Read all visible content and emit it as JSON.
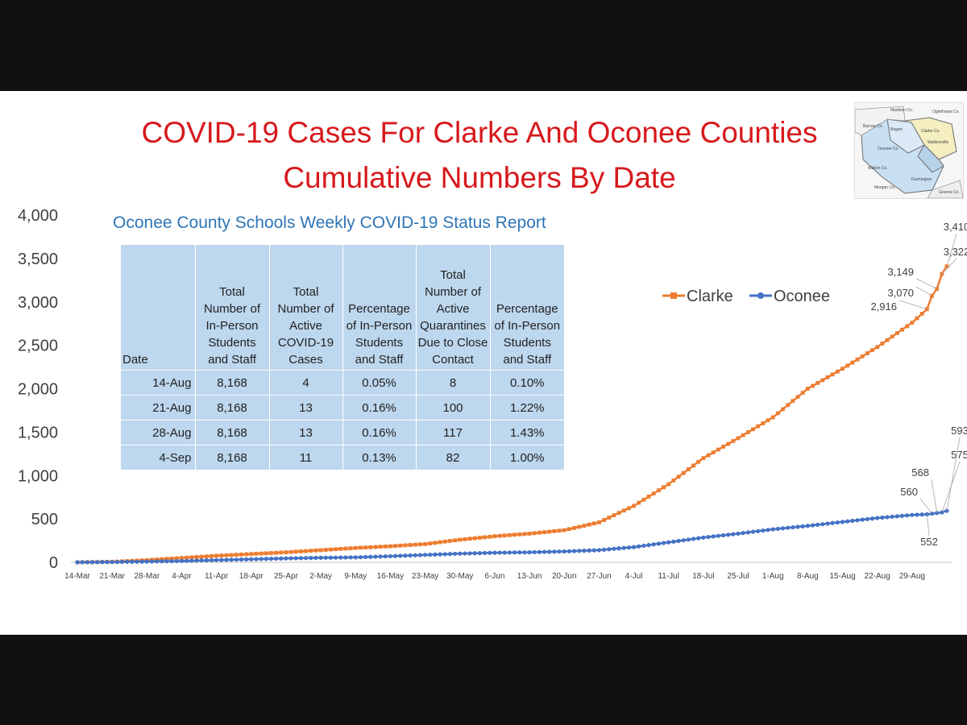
{
  "header": {
    "title_line_1": "COVID-19 Cases For Clarke And Oconee Counties",
    "title_line_2": "Cumulative Numbers By Date"
  },
  "map_inset": {
    "labels": [
      "Madison Co.",
      "Oglethorpe Co.",
      "Barrow Co.",
      "Clarke Co.",
      "Oconee Co.",
      "Walton Co.",
      "Morgan Co.",
      "Greene Co.",
      "Watkinsville",
      "Bogart",
      "Farmington"
    ]
  },
  "table": {
    "caption": "Oconee County Schools Weekly COVID-19 Status Report",
    "headers": [
      "Date",
      "Total Number of In-Person Students and Staff",
      "Total Number of Active COVID-19 Cases",
      "Percentage of In-Person Students and Staff",
      "Total Number of Active Quarantines Due to Close Contact",
      "Percentage of In-Person Students and Staff"
    ],
    "rows": [
      [
        "14-Aug",
        "8,168",
        "4",
        "0.05%",
        "8",
        "0.10%"
      ],
      [
        "21-Aug",
        "8,168",
        "13",
        "0.16%",
        "100",
        "1.22%"
      ],
      [
        "28-Aug",
        "8,168",
        "13",
        "0.16%",
        "117",
        "1.43%"
      ],
      [
        "4-Sep",
        "8,168",
        "11",
        "0.13%",
        "82",
        "1.00%"
      ]
    ]
  },
  "colors": {
    "title": "#d7191c",
    "clarke": "#ed7d31",
    "oconee": "#4472c4",
    "table_fill": "#bdd7ee",
    "caption": "#2e75b6"
  },
  "chart_data": {
    "type": "line",
    "title": "",
    "xlabel": "",
    "ylabel": "",
    "ylim": [
      0,
      4000
    ],
    "y_ticks": [
      "0",
      "500",
      "1,000",
      "1,500",
      "2,000",
      "2,500",
      "3,000",
      "3,500",
      "4,000"
    ],
    "x_tick_labels": [
      "14-Mar",
      "21-Mar",
      "28-Mar",
      "4-Apr",
      "11-Apr",
      "18-Apr",
      "25-Apr",
      "2-May",
      "9-May",
      "16-May",
      "23-May",
      "30-May",
      "6-Jun",
      "13-Jun",
      "20-Jun",
      "27-Jun",
      "4-Jul",
      "11-Jul",
      "18-Jul",
      "25-Jul",
      "1-Aug",
      "8-Aug",
      "15-Aug",
      "22-Aug",
      "29-Aug"
    ],
    "x_start": "2020-03-14",
    "x_end": "2020-09-05",
    "legend_position": "top-right",
    "series": [
      {
        "name": "Clarke",
        "key_points": [
          [
            "2020-03-14",
            0
          ],
          [
            "2020-03-21",
            5
          ],
          [
            "2020-03-28",
            25
          ],
          [
            "2020-04-04",
            50
          ],
          [
            "2020-04-11",
            75
          ],
          [
            "2020-04-18",
            95
          ],
          [
            "2020-04-25",
            115
          ],
          [
            "2020-05-02",
            140
          ],
          [
            "2020-05-09",
            165
          ],
          [
            "2020-05-16",
            185
          ],
          [
            "2020-05-23",
            210
          ],
          [
            "2020-05-30",
            260
          ],
          [
            "2020-06-06",
            300
          ],
          [
            "2020-06-13",
            330
          ],
          [
            "2020-06-20",
            370
          ],
          [
            "2020-06-27",
            460
          ],
          [
            "2020-07-04",
            650
          ],
          [
            "2020-07-11",
            900
          ],
          [
            "2020-07-18",
            1200
          ],
          [
            "2020-07-25",
            1430
          ],
          [
            "2020-08-01",
            1670
          ],
          [
            "2020-08-08",
            2000
          ],
          [
            "2020-08-15",
            2230
          ],
          [
            "2020-08-22",
            2480
          ],
          [
            "2020-08-29",
            2760
          ],
          [
            "2020-09-01",
            2916
          ],
          [
            "2020-09-02",
            3070
          ],
          [
            "2020-09-03",
            3149
          ],
          [
            "2020-09-04",
            3322
          ],
          [
            "2020-09-05",
            3410
          ]
        ],
        "data_labels": [
          {
            "date": "2020-09-01",
            "value": 2916,
            "text": "2,916"
          },
          {
            "date": "2020-09-02",
            "value": 3070,
            "text": "3,070"
          },
          {
            "date": "2020-09-03",
            "value": 3149,
            "text": "3,149"
          },
          {
            "date": "2020-09-04",
            "value": 3322,
            "text": "3,322"
          },
          {
            "date": "2020-09-05",
            "value": 3410,
            "text": "3,410"
          }
        ]
      },
      {
        "name": "Oconee",
        "key_points": [
          [
            "2020-03-14",
            0
          ],
          [
            "2020-03-21",
            3
          ],
          [
            "2020-03-28",
            8
          ],
          [
            "2020-04-04",
            15
          ],
          [
            "2020-04-11",
            25
          ],
          [
            "2020-04-18",
            35
          ],
          [
            "2020-04-25",
            45
          ],
          [
            "2020-05-02",
            52
          ],
          [
            "2020-05-09",
            57
          ],
          [
            "2020-05-16",
            70
          ],
          [
            "2020-05-23",
            85
          ],
          [
            "2020-05-30",
            100
          ],
          [
            "2020-06-06",
            110
          ],
          [
            "2020-06-13",
            115
          ],
          [
            "2020-06-20",
            125
          ],
          [
            "2020-06-27",
            140
          ],
          [
            "2020-07-04",
            175
          ],
          [
            "2020-07-11",
            230
          ],
          [
            "2020-07-18",
            285
          ],
          [
            "2020-07-25",
            330
          ],
          [
            "2020-08-01",
            380
          ],
          [
            "2020-08-08",
            420
          ],
          [
            "2020-08-15",
            465
          ],
          [
            "2020-08-22",
            510
          ],
          [
            "2020-08-29",
            545
          ],
          [
            "2020-09-01",
            552
          ],
          [
            "2020-09-02",
            560
          ],
          [
            "2020-09-03",
            568
          ],
          [
            "2020-09-04",
            575
          ],
          [
            "2020-09-05",
            593
          ]
        ],
        "data_labels": [
          {
            "date": "2020-09-01",
            "value": 552,
            "text": "552"
          },
          {
            "date": "2020-09-02",
            "value": 560,
            "text": "560"
          },
          {
            "date": "2020-09-03",
            "value": 568,
            "text": "568"
          },
          {
            "date": "2020-09-04",
            "value": 575,
            "text": "575"
          },
          {
            "date": "2020-09-05",
            "value": 593,
            "text": "593"
          }
        ]
      }
    ]
  }
}
